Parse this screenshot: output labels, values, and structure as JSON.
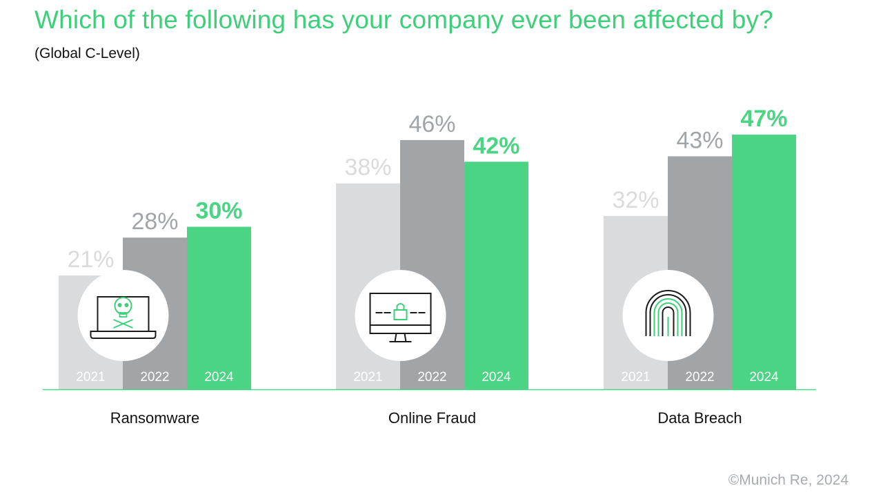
{
  "title": "Which of the following has your company ever been affected by?",
  "subtitle": "(Global C-Level)",
  "copyright": "©Munich Re, 2024",
  "colors": {
    "y2021": "#dadbdc",
    "y2022": "#a2a5a8",
    "y2024": "#4bd483",
    "title": "#3ecf7a"
  },
  "chart_data": {
    "type": "bar",
    "categories": [
      "Ransomware",
      "Online Fraud",
      "Data Breach"
    ],
    "series": [
      {
        "name": "2021",
        "values": [
          21,
          38,
          32
        ],
        "labels": [
          "21%",
          "38%",
          "32%"
        ]
      },
      {
        "name": "2022",
        "values": [
          28,
          46,
          43
        ],
        "labels": [
          "28%",
          "46%",
          "43%"
        ]
      },
      {
        "name": "2024",
        "values": [
          30,
          42,
          47
        ],
        "labels": [
          "30%",
          "42%",
          "47%"
        ]
      }
    ],
    "icons": [
      "laptop-skull-icon",
      "monitor-lock-icon",
      "fingerprint-icon"
    ],
    "ylim": [
      0,
      50
    ],
    "grid": false,
    "legend": "none"
  }
}
